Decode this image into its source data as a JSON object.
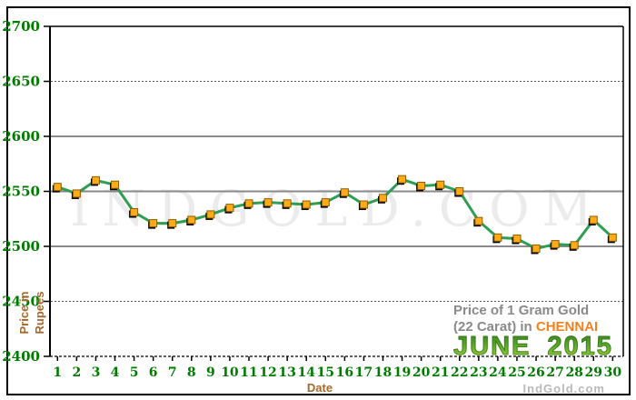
{
  "watermark": "INDGOLD.COM",
  "credit": "IndGold.com",
  "axes": {
    "y_label_line1": "Price in",
    "y_label_line2": "Rupees",
    "x_label": "Date"
  },
  "caption": {
    "line1": "Price of 1 Gram Gold",
    "line2_prefix": "(22 Carat) in ",
    "city": "CHENNAI",
    "month": "JUNE",
    "year": "2015"
  },
  "colors": {
    "tick_label_green": "#007b00",
    "axis_title_brown": "#a5682a",
    "caption_gray": "#8a8a8a",
    "city_orange": "#f58220",
    "month_green": "#4a9425",
    "line_green": "#2e9e54",
    "marker_fill": "#ffab18",
    "marker_stroke": "#8a5e00",
    "marker_shadow": "#000000",
    "grid_solid": "#8a8a8a",
    "grid_dotted": "#555555",
    "watermark_gray": "#ebebeb"
  },
  "chart_data": {
    "type": "line",
    "title": "Price of 1 Gram Gold (22 Carat) in CHENNAI - JUNE 2015",
    "xlabel": "Date",
    "ylabel": "Price in Rupees",
    "categories": [
      "1",
      "2",
      "3",
      "4",
      "5",
      "6",
      "7",
      "8",
      "9",
      "10",
      "11",
      "12",
      "13",
      "14",
      "15",
      "16",
      "17",
      "18",
      "19",
      "20",
      "21",
      "22",
      "23",
      "24",
      "25",
      "26",
      "27",
      "28",
      "29",
      "30"
    ],
    "values": [
      2554,
      2548,
      2560,
      2556,
      2531,
      2521,
      2521,
      2524,
      2529,
      2535,
      2539,
      2540,
      2539,
      2538,
      2540,
      2549,
      2538,
      2544,
      2561,
      2555,
      2556,
      2550,
      2523,
      2508,
      2507,
      2498,
      2502,
      2501,
      2524,
      2508
    ],
    "ylim": [
      2400,
      2700
    ],
    "yticks": [
      2400,
      2450,
      2500,
      2550,
      2600,
      2650,
      2700
    ],
    "solid_gridlines": [
      2500,
      2550,
      2600
    ],
    "dotted_gridlines": [
      2450,
      2650
    ],
    "grid": true,
    "legend": "none",
    "marker": "square"
  }
}
